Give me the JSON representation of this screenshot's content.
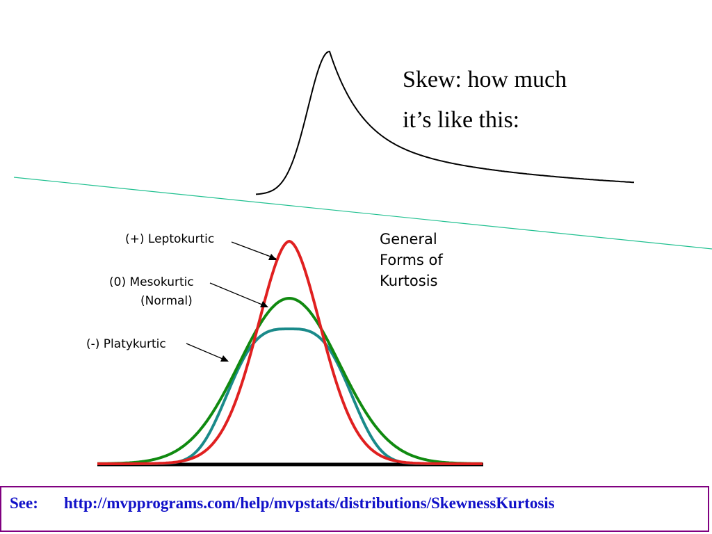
{
  "skew": {
    "line1": "Skew: how much",
    "line2": "it’s like this:"
  },
  "kurtosis": {
    "title_lines": [
      "General",
      "Forms of",
      "Kurtosis"
    ],
    "labels": {
      "lepto": "(+) Leptokurtic",
      "meso": "(0) Mesokurtic",
      "normal": "(Normal)",
      "platy": "(-) Platykurtic"
    }
  },
  "curves": {
    "colors": {
      "lepto": "#e02020",
      "meso": "#108a10",
      "platy": "#1a8a8a",
      "skew": "#000000",
      "divider": "#20c090"
    }
  },
  "footer": {
    "see_label": "See:",
    "url": "http://mvpprograms.com/help/mvpstats/distributions/SkewnessKurtosis",
    "border_color": "#800080",
    "text_color": "#1010c8"
  }
}
